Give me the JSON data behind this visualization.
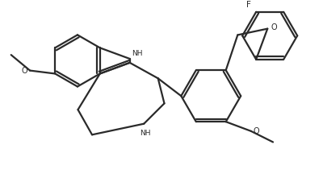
{
  "bg": "#ffffff",
  "lc": "#2a2a2a",
  "lw": 1.6,
  "figsize": [
    4.0,
    2.31
  ],
  "dpi": 100,
  "xlim": [
    0,
    400
  ],
  "ylim": [
    0,
    231
  ]
}
